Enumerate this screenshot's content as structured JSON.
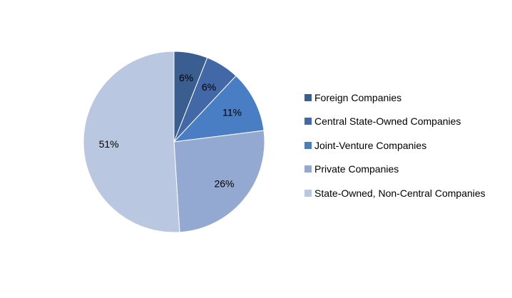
{
  "chart_data": {
    "type": "pie",
    "title": "",
    "start_angle": "12 o'clock",
    "direction": "clockwise",
    "legend_position": "right",
    "slices": [
      {
        "name": "Foreign Companies",
        "value": 6,
        "label": "6%",
        "color": "#3B5E91"
      },
      {
        "name": "Central State-Owned Companies",
        "value": 6,
        "label": "6%",
        "color": "#4268A8"
      },
      {
        "name": "Joint-Venture Companies",
        "value": 11,
        "label": "11%",
        "color": "#4A7EC4"
      },
      {
        "name": "Private Companies",
        "value": 26,
        "label": "26%",
        "color": "#93A9D2"
      },
      {
        "name": "State-Owned, Non-Central Companies",
        "value": 51,
        "label": "51%",
        "color": "#BAC7E1"
      }
    ]
  }
}
